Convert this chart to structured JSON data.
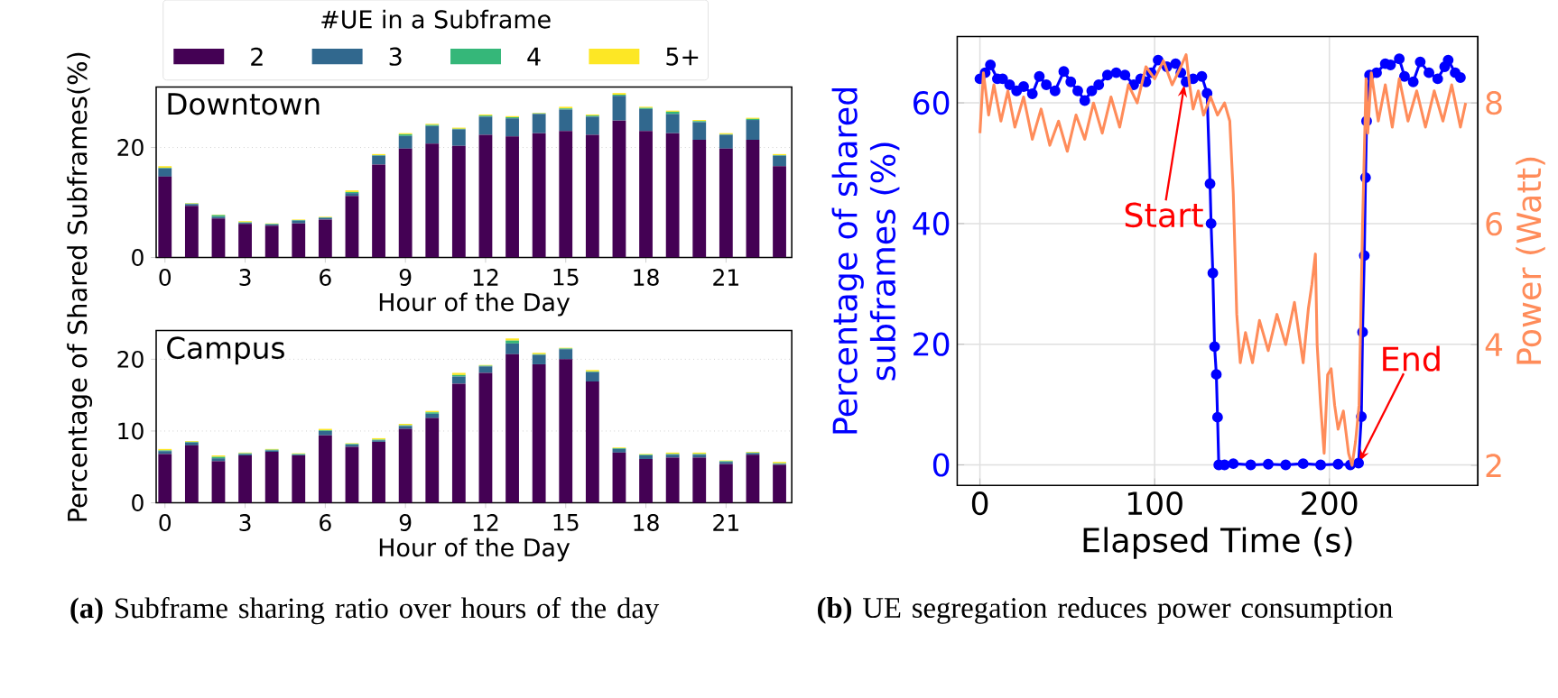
{
  "chart_data": [
    {
      "type": "bar",
      "title": "Downtown",
      "xlabel": "Hour of the Day",
      "ylabel": "Percentage of Shared Subframes(%)",
      "legend_title": "#UE in a Subframe",
      "legend": "top",
      "stacked": true,
      "grid": "y",
      "ylim": [
        0,
        31
      ],
      "yticks": [
        0,
        20
      ],
      "categories": [
        "0",
        null,
        null,
        "3",
        null,
        null,
        "6",
        null,
        null,
        "9",
        null,
        null,
        "12",
        null,
        null,
        "15",
        null,
        null,
        "18",
        null,
        null,
        "21",
        null,
        null
      ],
      "series": [
        {
          "name": "2",
          "color": "#440154",
          "values": [
            14.7,
            9.4,
            7.1,
            6.1,
            5.8,
            6.2,
            6.9,
            11.2,
            16.9,
            19.8,
            20.7,
            20.3,
            22.3,
            22.0,
            22.6,
            23.0,
            22.3,
            24.9,
            23.0,
            22.6,
            21.4,
            19.8,
            21.4,
            16.6
          ]
        },
        {
          "name": "3",
          "color": "#31688e",
          "values": [
            1.5,
            0.3,
            0.3,
            0.2,
            0.2,
            0.5,
            0.3,
            0.5,
            1.6,
            2.3,
            3.2,
            3.0,
            3.3,
            3.3,
            3.5,
            3.9,
            3.3,
            4.5,
            4.0,
            3.5,
            3.2,
            2.5,
            3.6,
            1.9
          ]
        },
        {
          "name": "4",
          "color": "#35b779",
          "values": [
            0.1,
            0.1,
            0.3,
            0.1,
            0.1,
            0.1,
            0.1,
            0.2,
            0.1,
            0.3,
            0.2,
            0.1,
            0.2,
            0.2,
            0.1,
            0.2,
            0.2,
            0.2,
            0.2,
            0.4,
            0.2,
            0.1,
            0.2,
            0.1
          ]
        },
        {
          "name": "5+",
          "color": "#fde725",
          "values": [
            0.3,
            0.1,
            0.1,
            0.2,
            0.1,
            0.1,
            0.1,
            0.3,
            0.2,
            0.2,
            0.2,
            0.2,
            0.2,
            0.2,
            0.1,
            0.3,
            0.2,
            0.3,
            0.2,
            0.2,
            0.2,
            0.2,
            0.2,
            0.2
          ]
        }
      ]
    },
    {
      "type": "bar",
      "title": "Campus",
      "xlabel": "Hour of the Day",
      "stacked": true,
      "grid": "y",
      "ylim": [
        0,
        24
      ],
      "yticks": [
        0,
        10,
        20
      ],
      "categories": [
        "0",
        null,
        null,
        "3",
        null,
        null,
        "6",
        null,
        null,
        "9",
        null,
        null,
        "12",
        null,
        null,
        "15",
        null,
        null,
        "18",
        null,
        null,
        "21",
        null,
        null
      ],
      "series": [
        {
          "color": "#440154",
          "values": [
            6.8,
            8.0,
            5.8,
            6.6,
            7.1,
            6.6,
            9.4,
            7.8,
            8.5,
            10.3,
            11.8,
            16.6,
            18.1,
            20.7,
            19.3,
            20.0,
            16.9,
            7.0,
            6.1,
            6.3,
            6.3,
            5.4,
            6.7,
            5.3
          ]
        },
        {
          "color": "#31688e",
          "values": [
            0.4,
            0.4,
            0.4,
            0.2,
            0.2,
            0.1,
            0.6,
            0.3,
            0.2,
            0.4,
            0.6,
            1.0,
            0.9,
            1.5,
            1.3,
            1.4,
            1.3,
            0.5,
            0.5,
            0.4,
            0.4,
            0.3,
            0.2,
            0.1
          ]
        },
        {
          "color": "#35b779",
          "values": [
            0.1,
            0.1,
            0.2,
            0.1,
            0.1,
            0.1,
            0.1,
            0.1,
            0.1,
            0.1,
            0.2,
            0.2,
            0.1,
            0.4,
            0.1,
            0.1,
            0.1,
            0.1,
            0.1,
            0.1,
            0.1,
            0.1,
            0.1,
            0.1
          ]
        },
        {
          "color": "#fde725",
          "values": [
            0.2,
            0.1,
            0.2,
            0.1,
            0.1,
            0.1,
            0.2,
            0.1,
            0.2,
            0.2,
            0.2,
            0.3,
            0.1,
            0.3,
            0.2,
            0.1,
            0.2,
            0.1,
            0.1,
            0.2,
            0.2,
            0.1,
            0.1,
            0.2
          ]
        }
      ],
      "annotations": [
        "**(a)** Subframe sharing ratio over hours of the day"
      ]
    },
    {
      "type": "line",
      "xlabel": "Elapsed Time (s)",
      "ylabel": "Percentage of shared subframes (%)",
      "y2label": "Power (Watt)",
      "grid": true,
      "marker": "circle",
      "line_style": "solid",
      "xlim": [
        -13,
        285
      ],
      "xticks": [
        0,
        100,
        200
      ],
      "ylim": [
        -3.4,
        71
      ],
      "yticks": [
        0,
        20,
        40,
        60
      ],
      "y2lim": [
        1.67,
        9.1
      ],
      "y2ticks": [
        2,
        4,
        6,
        8
      ],
      "series": [
        {
          "color": "#0000ff",
          "x": [
            0,
            3,
            6,
            10,
            13,
            17,
            21,
            25,
            30,
            34,
            38,
            43,
            48,
            52,
            56,
            60,
            64,
            68,
            73,
            78,
            83,
            88,
            92,
            95,
            98,
            102,
            107,
            112,
            115,
            118,
            122,
            127,
            130,
            131.7,
            132.3,
            133.3,
            134.3,
            135.3,
            136,
            136.7,
            140,
            145,
            155,
            165,
            175,
            185,
            195,
            205,
            212,
            216.7,
            218.3,
            219,
            220,
            220.7,
            221.3,
            223,
            227,
            232,
            235,
            240,
            243,
            248,
            252,
            257,
            262,
            266,
            268,
            272,
            275
          ],
          "values": [
            64,
            65,
            66.3,
            64,
            64,
            63,
            62,
            62.7,
            61.5,
            64.4,
            63,
            62,
            65.2,
            63.5,
            62,
            60.4,
            62,
            63,
            64.6,
            65,
            64.6,
            63,
            64,
            63.5,
            65,
            67.1,
            66,
            66.5,
            65,
            63.5,
            64,
            64.4,
            61.6,
            46.6,
            40,
            31.8,
            19.6,
            15,
            7.9,
            0,
            0,
            0.2,
            0,
            0.1,
            0,
            0.2,
            0,
            0.1,
            0,
            0.3,
            8,
            22,
            34.7,
            47.6,
            57,
            64.6,
            65,
            66.5,
            66.3,
            67.3,
            64.4,
            63.5,
            66.8,
            65,
            64,
            66,
            67.1,
            65,
            64.2
          ]
        },
        {
          "color": "#ff8c5a",
          "axis": "y2",
          "marker": "none",
          "x": [
            0,
            2,
            5,
            8,
            12,
            16,
            20,
            25,
            30,
            35,
            40,
            45,
            50,
            55,
            60,
            65,
            70,
            75,
            80,
            85,
            90,
            95,
            100,
            105,
            110,
            115,
            118,
            120,
            122,
            125,
            128,
            132,
            136,
            140,
            143,
            145,
            147,
            149,
            152,
            156,
            160,
            165,
            170,
            175,
            180,
            185,
            188,
            190,
            192,
            193,
            195,
            197,
            199,
            201,
            203,
            205,
            208,
            211,
            213,
            215,
            217,
            219,
            221,
            222,
            224,
            228,
            232,
            236,
            240,
            245,
            250,
            255,
            260,
            265,
            270,
            275,
            278
          ],
          "values": [
            7.5,
            8.5,
            7.8,
            8.3,
            7.7,
            8.2,
            7.6,
            8.1,
            7.4,
            7.9,
            7.3,
            7.7,
            7.2,
            7.8,
            7.4,
            8.0,
            7.5,
            8.1,
            7.6,
            8.3,
            8.0,
            8.6,
            8.4,
            8.7,
            8.3,
            8.6,
            8.8,
            8.3,
            7.9,
            8.2,
            7.8,
            8.1,
            7.8,
            8.0,
            7.7,
            6.5,
            4.5,
            3.7,
            4.2,
            3.7,
            4.4,
            3.9,
            4.5,
            4.0,
            4.7,
            3.7,
            4.6,
            5.0,
            5.5,
            4.0,
            3.0,
            2.2,
            3.5,
            3.6,
            3.0,
            2.6,
            2.9,
            2.2,
            2.0,
            2.4,
            3.0,
            6.0,
            8.4,
            7.5,
            8.5,
            7.7,
            8.3,
            7.6,
            8.4,
            7.7,
            8.2,
            7.6,
            8.2,
            7.7,
            8.3,
            7.6,
            8.0
          ]
        }
      ],
      "annotations": [
        {
          "text": "Start",
          "x": 117,
          "y": 63
        },
        {
          "text": "End",
          "x": 217,
          "y": 0.5
        },
        "**(b)** UE segregation reduces power consumption"
      ]
    }
  ]
}
